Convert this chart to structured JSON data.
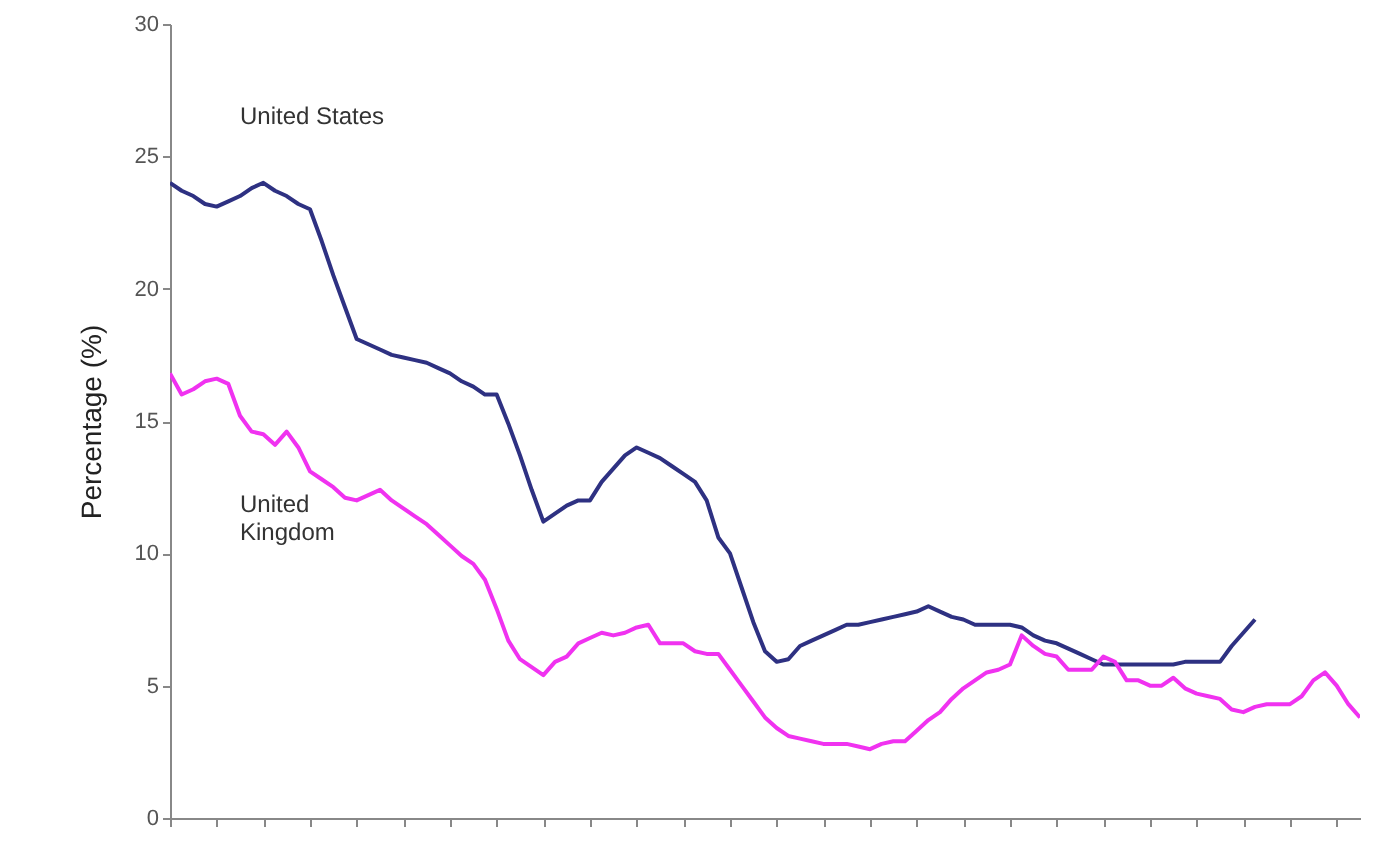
{
  "chart_data": {
    "type": "line",
    "ylabel": "Percentage (%)",
    "categories": [
      null,
      null,
      null,
      null,
      null,
      null,
      null,
      null,
      null,
      null,
      null,
      null,
      null,
      null,
      null,
      null,
      null,
      null,
      null,
      null,
      null,
      null,
      null,
      null,
      null,
      null,
      null,
      null,
      null,
      null,
      null,
      null,
      null,
      null,
      null,
      null,
      null,
      null,
      null,
      null,
      null,
      null,
      null,
      null,
      null,
      null,
      null,
      null,
      null,
      null,
      null,
      null,
      null,
      null,
      null,
      null,
      null,
      null,
      null,
      null,
      null,
      null,
      null,
      null,
      null,
      null,
      null,
      null,
      null,
      null,
      null,
      null,
      null,
      null,
      null,
      null,
      null,
      null,
      null,
      null,
      null,
      null,
      null,
      null,
      null,
      null,
      null,
      null,
      null,
      null,
      null,
      null,
      null,
      null,
      null,
      null,
      null,
      null,
      null,
      null,
      null,
      null,
      null
    ],
    "series": [
      {
        "name": "United States",
        "color": "#2e3182",
        "values": [
          24,
          23.7,
          23.5,
          23.2,
          23.1,
          23.3,
          23.5,
          23.8,
          24,
          23.7,
          23.5,
          23.2,
          23,
          21.8,
          20.5,
          19.3,
          18.1,
          17.9,
          17.7,
          17.5,
          17.4,
          17.3,
          17.2,
          17,
          16.8,
          16.5,
          16.3,
          16,
          16,
          14.9,
          13.7,
          12.4,
          11.2,
          11.5,
          11.8,
          12,
          12,
          12.7,
          13.2,
          13.7,
          14,
          13.8,
          13.6,
          13.3,
          13,
          12.7,
          12,
          10.6,
          10,
          8.7,
          7.4,
          6.3,
          5.9,
          6,
          6.5,
          6.7,
          6.9,
          7.1,
          7.3,
          7.3,
          7.4,
          7.5,
          7.6,
          7.7,
          7.8,
          8,
          7.8,
          7.6,
          7.5,
          7.3,
          7.3,
          7.3,
          7.3,
          7.2,
          6.9,
          6.7,
          6.6,
          6.4,
          6.2,
          6,
          5.8,
          5.8,
          5.8,
          5.8,
          5.8,
          5.8,
          5.8,
          5.9,
          5.9,
          5.9,
          5.9,
          6.5,
          7,
          7.5,
          null,
          null,
          null,
          null,
          null,
          null,
          null,
          null,
          null
        ]
      },
      {
        "name": "United Kingdom",
        "color": "#f032f0",
        "values": [
          16.8,
          16,
          16.2,
          16.5,
          16.6,
          16.4,
          15.2,
          14.6,
          14.5,
          14.1,
          14.6,
          14,
          13.1,
          12.8,
          12.5,
          12.1,
          12,
          12.2,
          12.4,
          12,
          11.7,
          11.4,
          11.1,
          10.7,
          10.3,
          9.9,
          9.6,
          9,
          7.9,
          6.7,
          6,
          5.7,
          5.4,
          5.9,
          6.1,
          6.6,
          6.8,
          7,
          6.9,
          7,
          7.2,
          7.3,
          6.6,
          6.6,
          6.6,
          6.3,
          6.2,
          6.2,
          5.6,
          5,
          4.4,
          3.8,
          3.4,
          3.1,
          3,
          2.9,
          2.8,
          2.8,
          2.8,
          2.7,
          2.6,
          2.8,
          2.9,
          2.9,
          3.3,
          3.7,
          4,
          4.5,
          4.9,
          5.2,
          5.5,
          5.6,
          5.8,
          6.9,
          6.5,
          6.2,
          6.1,
          5.6,
          5.6,
          5.6,
          6.1,
          5.9,
          5.2,
          5.2,
          5,
          5,
          5.3,
          4.9,
          4.7,
          4.6,
          4.5,
          4.1,
          4,
          4.2,
          4.3,
          4.3,
          4.3,
          4.6,
          5.2,
          5.5,
          5,
          4.3,
          3.8
        ]
      }
    ],
    "ylim": [
      0,
      30
    ],
    "yticks": [
      0,
      5,
      10,
      15,
      20,
      25,
      30
    ]
  }
}
